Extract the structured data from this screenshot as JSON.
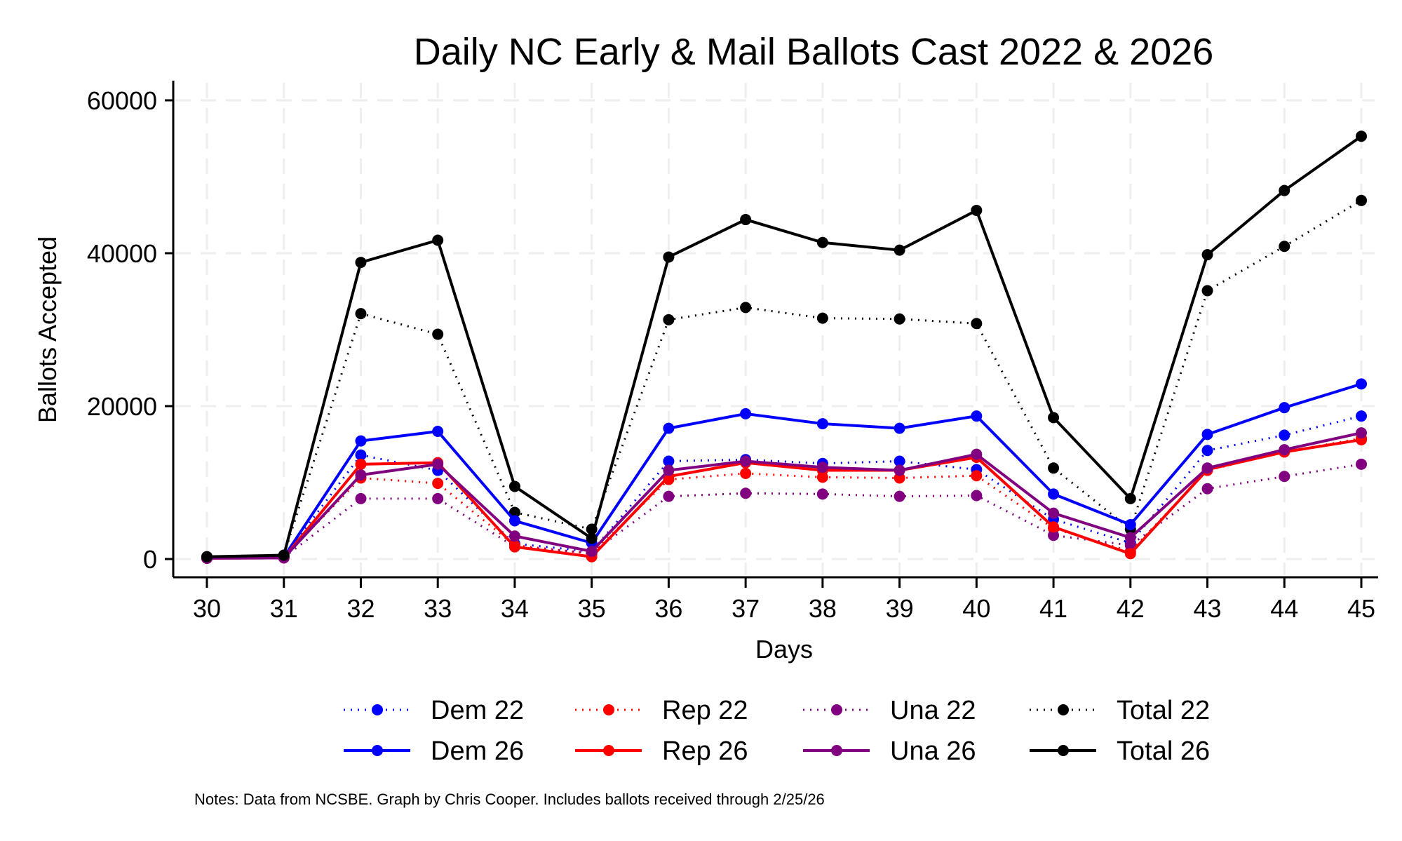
{
  "chart_data": {
    "type": "line",
    "title": "Daily NC Early & Mail Ballots Cast 2022 & 2026",
    "xlabel": "Days",
    "ylabel": "Ballots Accepted",
    "x": [
      30,
      31,
      32,
      33,
      34,
      35,
      36,
      37,
      38,
      39,
      40,
      41,
      42,
      43,
      44,
      45
    ],
    "xlim": [
      30,
      45
    ],
    "ylim": [
      0,
      60000
    ],
    "yticks": [
      0,
      20000,
      40000,
      60000
    ],
    "grid": true,
    "legend_position": "bottom",
    "series": [
      {
        "name": "Dem 22",
        "color": "#0000ff",
        "style": "dotted",
        "values": [
          200,
          300,
          13600,
          11600,
          2000,
          1000,
          12800,
          13000,
          12500,
          12800,
          11700,
          5200,
          2100,
          14200,
          16200,
          18700
        ]
      },
      {
        "name": "Rep 22",
        "color": "#ff0000",
        "style": "dotted",
        "values": [
          150,
          250,
          10600,
          9900,
          1800,
          700,
          10400,
          11200,
          10700,
          10600,
          10900,
          4000,
          1000,
          11600,
          14000,
          15800
        ]
      },
      {
        "name": "Una 22",
        "color": "#800080",
        "style": "dotted",
        "values": [
          100,
          200,
          7900,
          7900,
          1600,
          800,
          8200,
          8600,
          8500,
          8200,
          8300,
          3100,
          1800,
          9200,
          10800,
          12400
        ]
      },
      {
        "name": "Total 22",
        "color": "#000000",
        "style": "dotted",
        "values": [
          300,
          500,
          32100,
          29400,
          6100,
          3900,
          31300,
          32900,
          31500,
          31400,
          30800,
          11900,
          3900,
          35100,
          40900,
          46900
        ]
      },
      {
        "name": "Dem 26",
        "color": "#0000ff",
        "style": "solid",
        "values": [
          150,
          250,
          15450,
          16700,
          5000,
          2100,
          17100,
          19000,
          17700,
          17100,
          18700,
          8500,
          4500,
          16300,
          19800,
          22900
        ]
      },
      {
        "name": "Rep 26",
        "color": "#ff0000",
        "style": "solid",
        "values": [
          100,
          150,
          12400,
          12600,
          1600,
          300,
          10800,
          12600,
          11600,
          11600,
          13300,
          4200,
          700,
          11700,
          14000,
          15600
        ]
      },
      {
        "name": "Una 26",
        "color": "#800080",
        "style": "solid",
        "values": [
          100,
          150,
          11000,
          12400,
          3000,
          1000,
          11600,
          12800,
          12000,
          11600,
          13700,
          6000,
          2800,
          11900,
          14300,
          16500
        ]
      },
      {
        "name": "Total 26",
        "color": "#000000",
        "style": "solid",
        "values": [
          300,
          500,
          38800,
          41700,
          9500,
          2700,
          39500,
          44400,
          41400,
          40400,
          45600,
          18500,
          7900,
          39800,
          48200,
          55300
        ]
      }
    ],
    "legend": [
      [
        "Dem 22",
        "Rep 22",
        "Una 22",
        "Total 22"
      ],
      [
        "Dem 26",
        "Rep 26",
        "Una 26",
        "Total 26"
      ]
    ],
    "notes": "Notes: Data from NCSBE. Graph by Chris Cooper. Includes ballots received through 2/25/26"
  }
}
